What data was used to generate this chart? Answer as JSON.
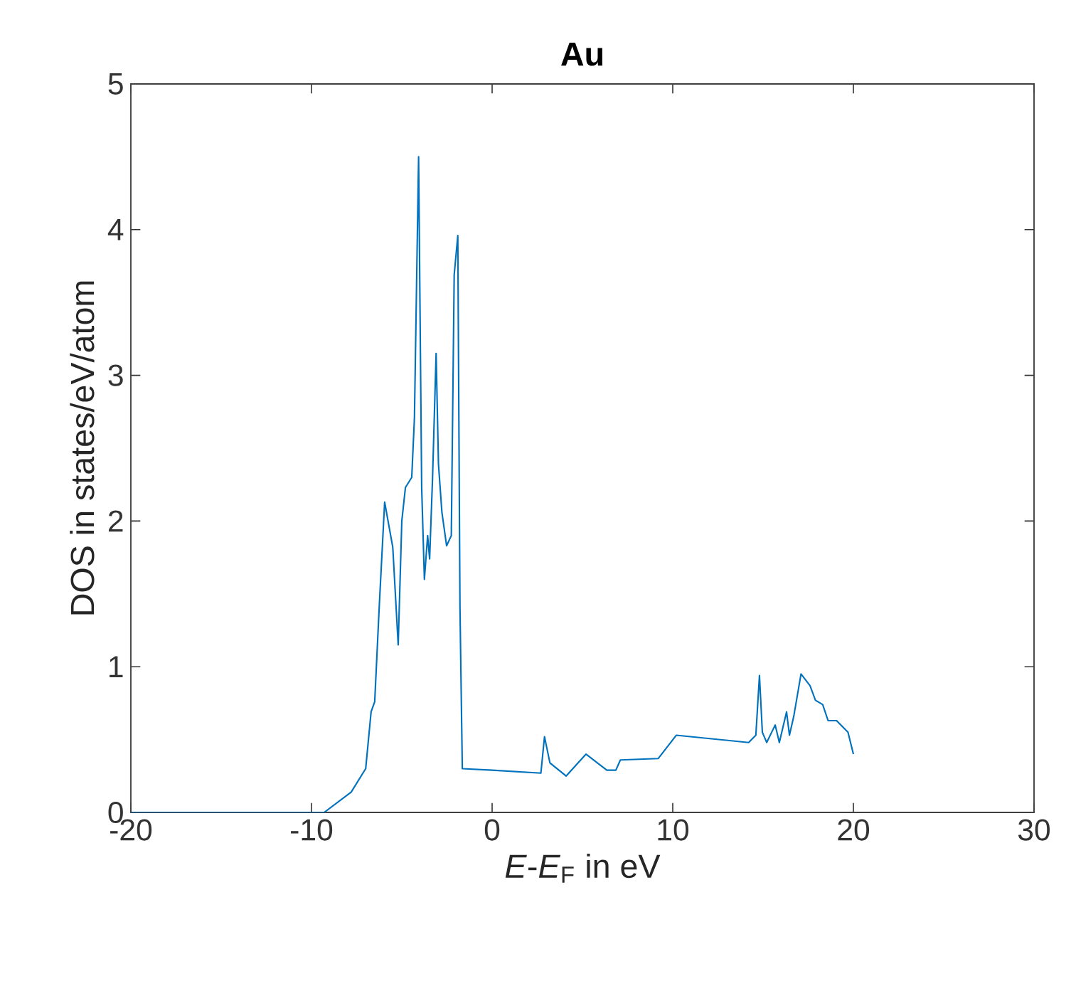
{
  "chart_data": {
    "type": "line",
    "title": "Au",
    "xlabel": "*E*-*E*$_{F}$ in eV",
    "ylabel": "DOS in states/eV/atom",
    "xlim": [
      -20,
      30
    ],
    "ylim": [
      0,
      5
    ],
    "xticks": [
      -20,
      -10,
      0,
      10,
      20,
      30
    ],
    "yticks": [
      0,
      1,
      2,
      3,
      4,
      5
    ],
    "grid": false,
    "line_style": "solid",
    "marker": "none",
    "series": [
      {
        "color": "#0072bd",
        "x": [
          -20,
          -9.3,
          -7.8,
          -7.0,
          -6.7,
          -6.5,
          -6.25,
          -5.95,
          -5.5,
          -5.2,
          -5.0,
          -4.8,
          -4.45,
          -4.3,
          -4.07,
          -3.9,
          -3.75,
          -3.57,
          -3.46,
          -3.3,
          -3.1,
          -2.97,
          -2.78,
          -2.52,
          -2.26,
          -2.1,
          -1.9,
          -1.78,
          -1.65,
          0,
          2.7,
          2.9,
          3.2,
          4.1,
          5.2,
          6.35,
          6.85,
          7.1,
          9.2,
          10.2,
          14.2,
          14.6,
          14.8,
          14.96,
          15.2,
          15.67,
          15.9,
          16.3,
          16.46,
          16.7,
          17.1,
          17.6,
          17.9,
          18.3,
          18.6,
          19.07,
          19.7,
          20.0
        ],
        "values": [
          0,
          0,
          0.14,
          0.3,
          0.69,
          0.76,
          1.41,
          2.13,
          1.82,
          1.15,
          2.0,
          2.23,
          2.3,
          2.71,
          4.5,
          2.23,
          1.6,
          1.9,
          1.74,
          2.29,
          3.15,
          2.39,
          2.06,
          1.83,
          1.9,
          3.69,
          3.96,
          1.41,
          0.3,
          0.29,
          0.27,
          0.52,
          0.34,
          0.25,
          0.4,
          0.29,
          0.29,
          0.36,
          0.37,
          0.53,
          0.48,
          0.53,
          0.94,
          0.55,
          0.48,
          0.6,
          0.48,
          0.69,
          0.53,
          0.66,
          0.95,
          0.87,
          0.77,
          0.74,
          0.63,
          0.63,
          0.55,
          0.4
        ]
      }
    ]
  }
}
